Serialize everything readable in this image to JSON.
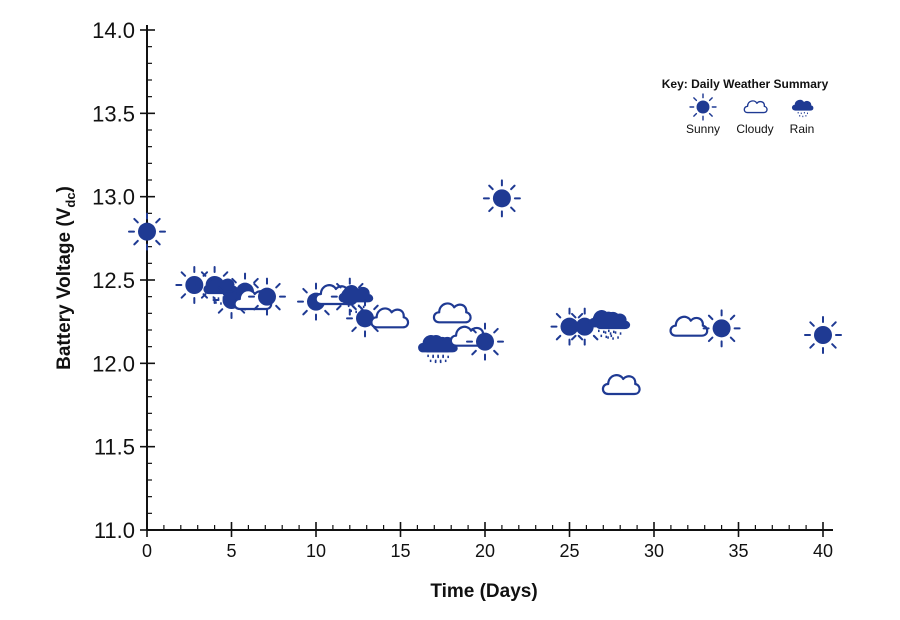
{
  "chart_data": {
    "type": "scatter",
    "title": "",
    "xlabel": "Time (Days)",
    "ylabel_main": "Battery Voltage (V",
    "ylabel_sub": "dc",
    "ylabel_close": ")",
    "xlim": [
      0,
      40
    ],
    "ylim": [
      11.0,
      14.0
    ],
    "x_ticks": [
      0,
      5,
      10,
      15,
      20,
      25,
      30,
      35,
      40
    ],
    "x_tick_labels": [
      "0",
      "5",
      "10",
      "15",
      "20",
      "25",
      "30",
      "35",
      "40"
    ],
    "y_ticks": [
      11.0,
      11.5,
      12.0,
      12.5,
      13.0,
      13.5,
      14.0
    ],
    "y_tick_labels": [
      "11.0",
      "11.5",
      "12.0",
      "12.5",
      "13.0",
      "13.5",
      "14.0"
    ],
    "x_minor_step": 1,
    "y_minor_step": 0.1,
    "grid": false,
    "marker_color": "#1f3a93",
    "legend": {
      "title": "Key: Daily Weather Summary",
      "position": "top-right",
      "entries": [
        {
          "weather": "sunny",
          "label": "Sunny"
        },
        {
          "weather": "cloudy",
          "label": "Cloudy"
        },
        {
          "weather": "rain",
          "label": "Rain"
        }
      ]
    },
    "points": [
      {
        "day": 0,
        "voltage": 12.79,
        "weather": "sunny"
      },
      {
        "day": 2.8,
        "voltage": 12.47,
        "weather": "sunny"
      },
      {
        "day": 4.0,
        "voltage": 12.47,
        "weather": "sunny"
      },
      {
        "day": 4.3,
        "voltage": 12.45,
        "weather": "rain"
      },
      {
        "day": 5.0,
        "voltage": 12.38,
        "weather": "sunny"
      },
      {
        "day": 5.8,
        "voltage": 12.43,
        "weather": "sunny"
      },
      {
        "day": 6.2,
        "voltage": 12.38,
        "weather": "cloudy"
      },
      {
        "day": 7.1,
        "voltage": 12.4,
        "weather": "sunny"
      },
      {
        "day": 10.0,
        "voltage": 12.37,
        "weather": "sunny"
      },
      {
        "day": 11.0,
        "voltage": 12.41,
        "weather": "cloudy"
      },
      {
        "day": 12.0,
        "voltage": 12.4,
        "weather": "sunny"
      },
      {
        "day": 12.3,
        "voltage": 12.4,
        "weather": "rain"
      },
      {
        "day": 12.9,
        "voltage": 12.27,
        "weather": "sunny"
      },
      {
        "day": 14.3,
        "voltage": 12.27,
        "weather": "cloudy"
      },
      {
        "day": 17.0,
        "voltage": 12.1,
        "weather": "rain"
      },
      {
        "day": 17.3,
        "voltage": 12.1,
        "weather": "rain"
      },
      {
        "day": 18.0,
        "voltage": 12.3,
        "weather": "cloudy"
      },
      {
        "day": 19.0,
        "voltage": 12.16,
        "weather": "cloudy"
      },
      {
        "day": 20.0,
        "voltage": 12.13,
        "weather": "sunny"
      },
      {
        "day": 21.0,
        "voltage": 12.99,
        "weather": "sunny"
      },
      {
        "day": 25.0,
        "voltage": 12.22,
        "weather": "sunny"
      },
      {
        "day": 25.9,
        "voltage": 12.22,
        "weather": "sunny"
      },
      {
        "day": 27.1,
        "voltage": 12.25,
        "weather": "rain"
      },
      {
        "day": 27.5,
        "voltage": 12.24,
        "weather": "rain"
      },
      {
        "day": 28.0,
        "voltage": 11.87,
        "weather": "cloudy"
      },
      {
        "day": 32.0,
        "voltage": 12.22,
        "weather": "cloudy"
      },
      {
        "day": 34.0,
        "voltage": 12.21,
        "weather": "sunny"
      },
      {
        "day": 40.0,
        "voltage": 12.17,
        "weather": "sunny"
      }
    ]
  }
}
